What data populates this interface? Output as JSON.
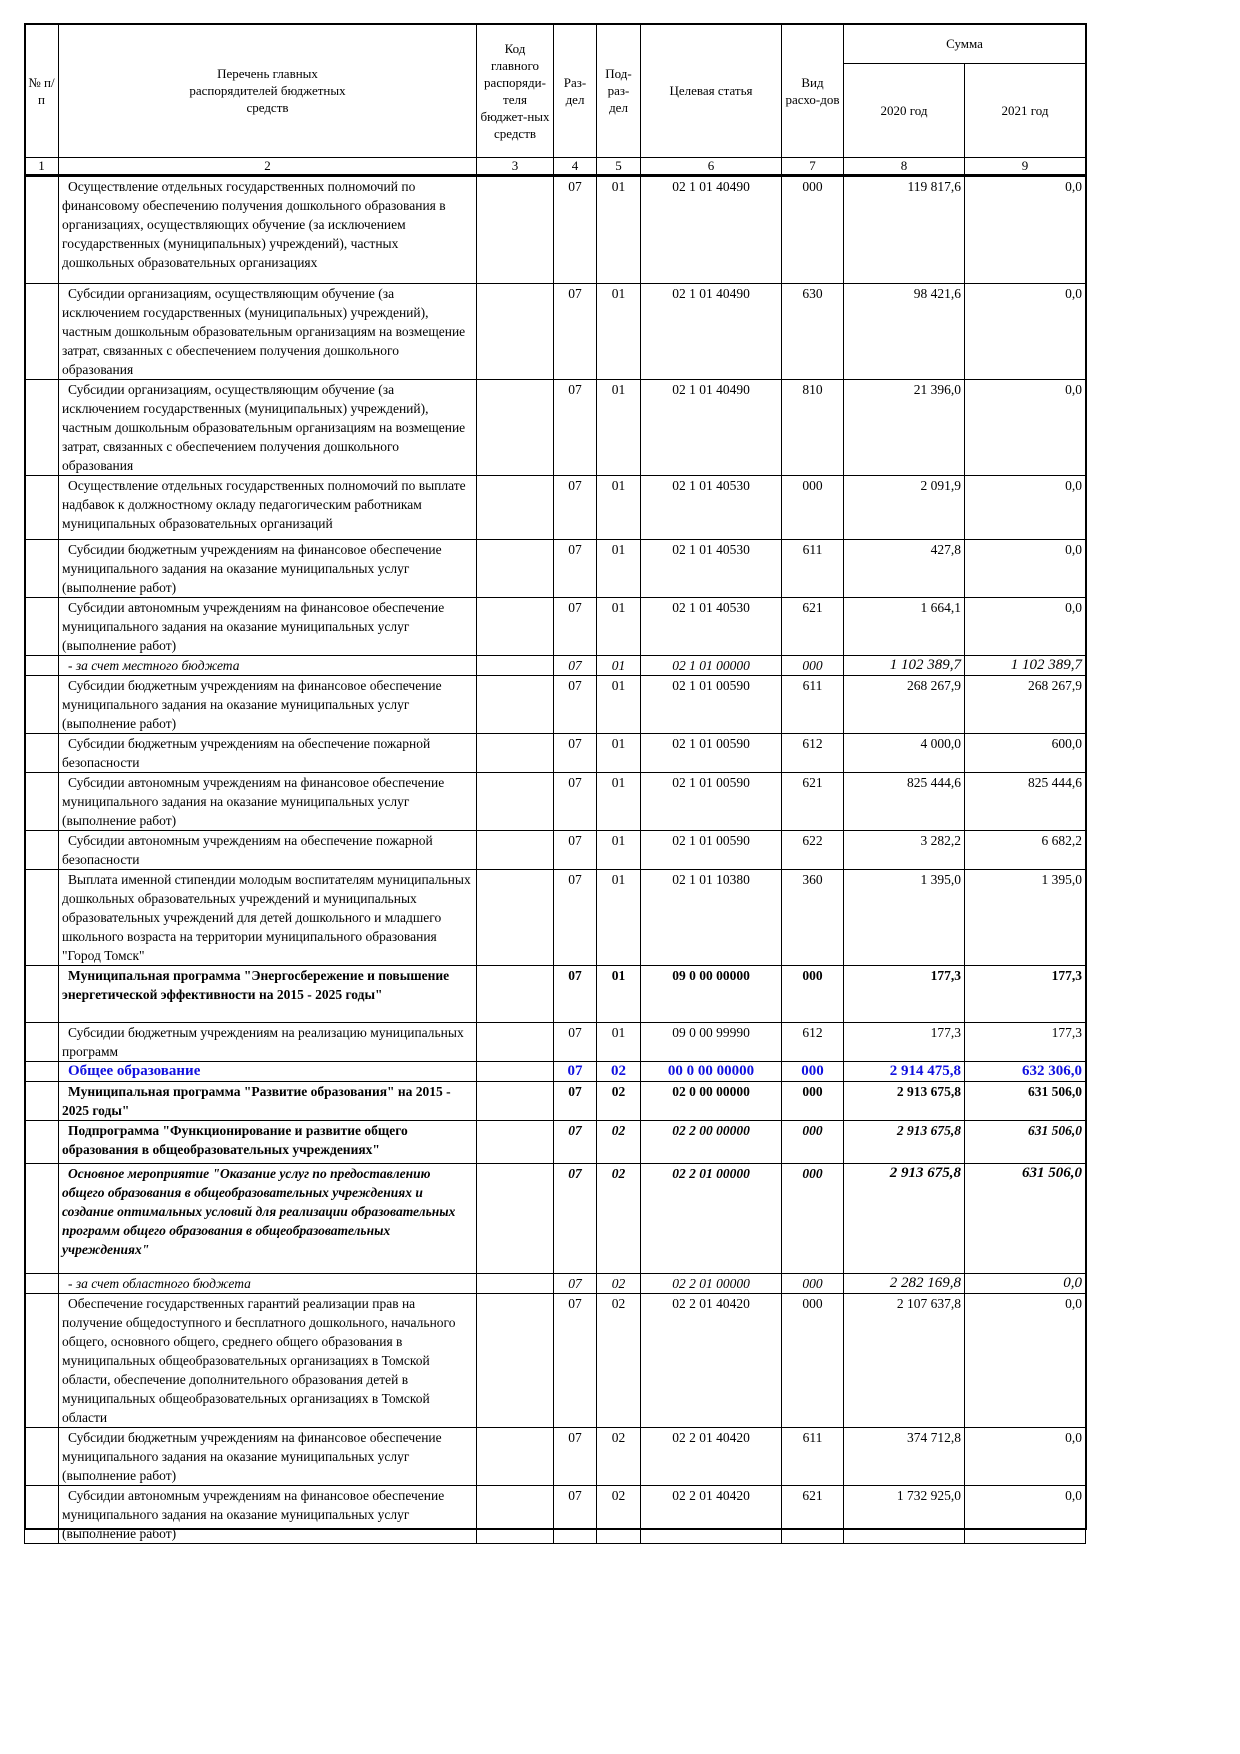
{
  "header": {
    "no": "№ п/п",
    "name": "Перечень главных распорядителей бюджетных средств",
    "code": "Код главного распоряди-теля бюджет-ных средств",
    "razdel": "Раз-дел",
    "podrazdel": "Под-раз-дел",
    "target": "Целевая статья",
    "vid": "Вид расхо-дов",
    "sum": "Сумма",
    "y2020": "2020 год",
    "y2021": "2021 год"
  },
  "column_numbers": [
    "1",
    "2",
    "3",
    "4",
    "5",
    "6",
    "7",
    "8",
    "9"
  ],
  "rows": [
    {
      "style": "n",
      "name": "Осуществление отдельных государственных полномочий по финансовому обеспечению получения дошкольного образования в организациях, осуществляющих обучение (за исключением государственных (муниципальных) учреждений), частных дошкольных образовательных организациях",
      "rz": "07",
      "pr": "01",
      "cs": "02 1 01 40490",
      "vr": "000",
      "s2020": "119 817,6",
      "s2021": "0,0"
    },
    {
      "style": "n",
      "name": "Субсидии организациям, осуществляющим обучение (за исключением государственных (муниципальных) учреждений), частным дошкольным образовательным организациям на возмещение затрат, связанных с обеспечением получения дошкольного образования",
      "rz": "07",
      "pr": "01",
      "cs": "02 1 01 40490",
      "vr": "630",
      "s2020": "98 421,6",
      "s2021": "0,0"
    },
    {
      "style": "n",
      "name": "Субсидии организациям, осуществляющим обучение (за исключением государственных (муниципальных) учреждений), частным дошкольным образовательным организациям на возмещение затрат, связанных с обеспечением получения дошкольного образования",
      "rz": "07",
      "pr": "01",
      "cs": "02 1 01 40490",
      "vr": "810",
      "s2020": "21 396,0",
      "s2021": "0,0"
    },
    {
      "style": "n",
      "name": "Осуществление отдельных государственных полномочий по выплате надбавок к должностному окладу педагогическим работникам муниципальных образовательных организаций",
      "rz": "07",
      "pr": "01",
      "cs": "02 1 01 40530",
      "vr": "000",
      "s2020": "2 091,9",
      "s2021": "0,0"
    },
    {
      "style": "n",
      "name": "Субсидии бюджетным учреждениям на финансовое обеспечение муниципального задания на оказание муниципальных услуг (выполнение работ)",
      "rz": "07",
      "pr": "01",
      "cs": "02 1 01 40530",
      "vr": "611",
      "s2020": "427,8",
      "s2021": "0,0"
    },
    {
      "style": "n",
      "name": "Субсидии автономным учреждениям на финансовое обеспечение муниципального задания на оказание муниципальных услуг (выполнение работ)",
      "rz": "07",
      "pr": "01",
      "cs": "02 1 01 40530",
      "vr": "621",
      "s2020": "1 664,1",
      "s2021": "0,0"
    },
    {
      "style": "it",
      "name": "- за счет местного бюджета",
      "rz": "07",
      "pr": "01",
      "cs": "02 1 01 00000",
      "vr": "000",
      "s2020": "1 102 389,7",
      "s2021": "1 102 389,7"
    },
    {
      "style": "n",
      "name": "Субсидии бюджетным учреждениям на финансовое обеспечение муниципального задания на оказание муниципальных услуг (выполнение работ)",
      "rz": "07",
      "pr": "01",
      "cs": "02 1 01 00590",
      "vr": "611",
      "s2020": "268 267,9",
      "s2021": "268 267,9"
    },
    {
      "style": "n",
      "name": "Субсидии бюджетным учреждениям на обеспечение пожарной безопасности",
      "rz": "07",
      "pr": "01",
      "cs": "02 1 01 00590",
      "vr": "612",
      "s2020": "4 000,0",
      "s2021": "600,0"
    },
    {
      "style": "n",
      "name": "Субсидии автономным учреждениям на финансовое обеспечение муниципального задания на оказание муниципальных услуг (выполнение работ)",
      "rz": "07",
      "pr": "01",
      "cs": "02 1 01 00590",
      "vr": "621",
      "s2020": "825 444,6",
      "s2021": "825 444,6"
    },
    {
      "style": "n",
      "name": "Субсидии автономным учреждениям на обеспечение пожарной безопасности",
      "rz": "07",
      "pr": "01",
      "cs": "02 1 01 00590",
      "vr": "622",
      "s2020": "3 282,2",
      "s2021": "6 682,2"
    },
    {
      "style": "n",
      "name": "Выплата именной стипендии молодым воспитателям муниципальных дошкольных образовательных учреждений и муниципальных образовательных учреждений для детей дошкольного и младшего школьного возраста на территории муниципального образования \"Город Томск\"",
      "rz": "07",
      "pr": "01",
      "cs": "02 1 01 10380",
      "vr": "360",
      "s2020": "1 395,0",
      "s2021": "1 395,0"
    },
    {
      "style": "b",
      "name": "Муниципальная программа \"Энергосбережение и повышение энергетической эффективности на 2015 - 2025 годы\"",
      "rz": "07",
      "pr": "01",
      "cs": "09 0 00 00000",
      "vr": "000",
      "s2020": "177,3",
      "s2021": "177,3"
    },
    {
      "style": "n",
      "name": "Субсидии бюджетным учреждениям на реализацию муниципальных программ",
      "rz": "07",
      "pr": "01",
      "cs": "09 0 00 99990",
      "vr": "612",
      "s2020": "177,3",
      "s2021": "177,3"
    },
    {
      "style": "bl",
      "name": "Общее образование",
      "rz": "07",
      "pr": "02",
      "cs": "00 0 00 00000",
      "vr": "000",
      "s2020": "2 914 475,8",
      "s2021": "632 306,0"
    },
    {
      "style": "b",
      "name": "Муниципальная программа \"Развитие образования\" на 2015 - 2025 годы\"",
      "rz": "07",
      "pr": "02",
      "cs": "02 0 00 00000",
      "vr": "000",
      "s2020": "2 913 675,8",
      "s2021": "631 506,0"
    },
    {
      "style": "bt",
      "name": "Подпрограмма \"Функционирование и развитие общего образования в общеобразовательных учреждениях\"",
      "rz": "07",
      "pr": "02",
      "cs": "02 2 00 00000",
      "vr": "000",
      "s2020": "2 913 675,8",
      "s2021": "631 506,0"
    },
    {
      "style": "bi",
      "name": "Основное мероприятие \"Оказание услуг по предоставлению общего образования в общеобразовательных учреждениях и создание оптимальных условий для реализации образовательных программ общего образования в общеобразовательных учреждениях\"",
      "rz": "07",
      "pr": "02",
      "cs": "02 2 01 00000",
      "vr": "000",
      "s2020": "2 913 675,8",
      "s2021": "631 506,0"
    },
    {
      "style": "it",
      "name": "- за счет областного бюджета",
      "rz": "07",
      "pr": "02",
      "cs": "02 2 01 00000",
      "vr": "000",
      "s2020": "2 282 169,8",
      "s2021": "0,0"
    },
    {
      "style": "n",
      "name": "Обеспечение государственных гарантий реализации прав на получение общедоступного и бесплатного дошкольного, начального общего, основного общего, среднего общего образования в муниципальных общеобразовательных организациях в Томской области, обеспечение дополнительного образования детей в муниципальных общеобразовательных организациях в Томской области",
      "rz": "07",
      "pr": "02",
      "cs": "02 2 01 40420",
      "vr": "000",
      "s2020": "2 107 637,8",
      "s2021": "0,0"
    },
    {
      "style": "n",
      "name": "Субсидии бюджетным учреждениям на финансовое обеспечение муниципального задания на оказание муниципальных услуг (выполнение работ)",
      "rz": "07",
      "pr": "02",
      "cs": "02 2 01 40420",
      "vr": "611",
      "s2020": "374 712,8",
      "s2021": "0,0"
    },
    {
      "style": "n",
      "name": "Субсидии автономным учреждениям на финансовое обеспечение муниципального задания на оказание муниципальных услуг (выполнение работ)",
      "rz": "07",
      "pr": "02",
      "cs": "02 2 01 40420",
      "vr": "621",
      "s2020": "1 732 925,0",
      "s2021": "0,0"
    }
  ]
}
